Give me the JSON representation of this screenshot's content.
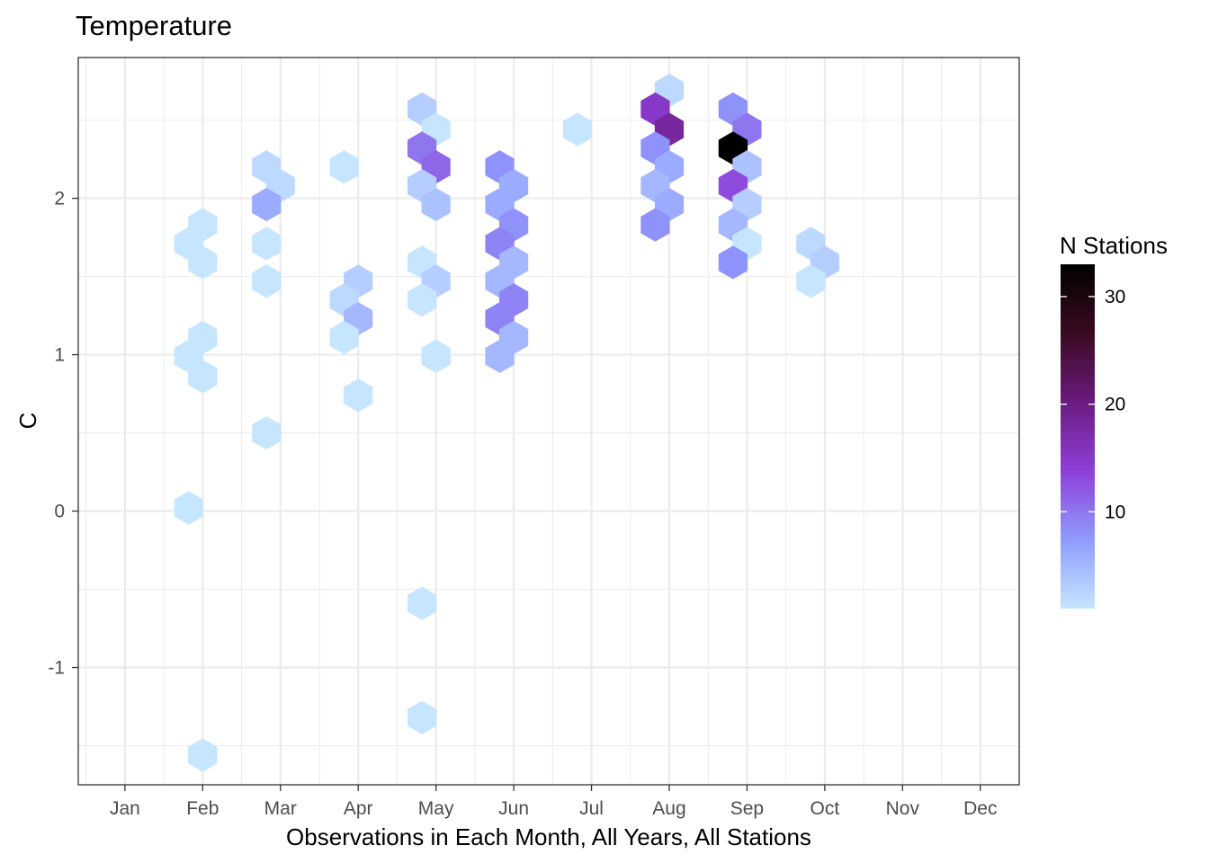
{
  "chart_data": {
    "type": "hexbin",
    "title": "Temperature",
    "xlabel": "Observations in Each Month, All Years, All Stations",
    "ylabel": "C",
    "x_categories": [
      "Jan",
      "Feb",
      "Mar",
      "Apr",
      "May",
      "Jun",
      "Jul",
      "Aug",
      "Sep",
      "Oct",
      "Nov",
      "Dec"
    ],
    "xlim": [
      0.4,
      12.5
    ],
    "ylim": [
      -1.75,
      2.9
    ],
    "y_ticks": [
      {
        "value": -1,
        "label": "-1"
      },
      {
        "value": 0,
        "label": "0"
      },
      {
        "value": 1,
        "label": "1"
      },
      {
        "value": 2,
        "label": "2"
      }
    ],
    "grid": true,
    "legend": {
      "title": "N Stations",
      "placement": "right",
      "min": 1,
      "max": 33,
      "ticks": [
        {
          "value": 10,
          "label": "10"
        },
        {
          "value": 20,
          "label": "20"
        },
        {
          "value": 30,
          "label": "30"
        }
      ],
      "colors": [
        "#c6e5ff",
        "#8f9bff",
        "#8e3fd8",
        "#6a1b80",
        "#3a0a20",
        "#000000"
      ]
    },
    "cells": [
      {
        "x": 1.82,
        "y": 1.71,
        "count": 1
      },
      {
        "x": 2.0,
        "y": 1.83,
        "count": 1
      },
      {
        "x": 2.0,
        "y": 1.59,
        "count": 1
      },
      {
        "x": 2.0,
        "y": 1.11,
        "count": 1
      },
      {
        "x": 1.82,
        "y": 0.99,
        "count": 1
      },
      {
        "x": 2.0,
        "y": 0.86,
        "count": 1
      },
      {
        "x": 1.82,
        "y": 0.02,
        "count": 1
      },
      {
        "x": 2.0,
        "y": -1.56,
        "count": 1
      },
      {
        "x": 2.82,
        "y": 2.2,
        "count": 2
      },
      {
        "x": 3.0,
        "y": 2.08,
        "count": 2
      },
      {
        "x": 2.82,
        "y": 1.96,
        "count": 6
      },
      {
        "x": 2.82,
        "y": 1.71,
        "count": 1
      },
      {
        "x": 2.82,
        "y": 1.47,
        "count": 1
      },
      {
        "x": 2.82,
        "y": 0.5,
        "count": 1
      },
      {
        "x": 3.82,
        "y": 2.2,
        "count": 1
      },
      {
        "x": 4.0,
        "y": 1.47,
        "count": 3
      },
      {
        "x": 3.82,
        "y": 1.35,
        "count": 2
      },
      {
        "x": 4.0,
        "y": 1.23,
        "count": 5
      },
      {
        "x": 3.82,
        "y": 1.11,
        "count": 1
      },
      {
        "x": 4.0,
        "y": 0.74,
        "count": 1
      },
      {
        "x": 4.82,
        "y": 2.57,
        "count": 3
      },
      {
        "x": 5.0,
        "y": 2.44,
        "count": 1
      },
      {
        "x": 4.82,
        "y": 2.32,
        "count": 10
      },
      {
        "x": 5.0,
        "y": 2.2,
        "count": 11
      },
      {
        "x": 4.82,
        "y": 2.08,
        "count": 3
      },
      {
        "x": 5.0,
        "y": 1.96,
        "count": 4
      },
      {
        "x": 4.82,
        "y": 1.59,
        "count": 1
      },
      {
        "x": 5.0,
        "y": 1.47,
        "count": 3
      },
      {
        "x": 4.82,
        "y": 1.35,
        "count": 1
      },
      {
        "x": 5.0,
        "y": 0.99,
        "count": 1
      },
      {
        "x": 4.82,
        "y": -0.59,
        "count": 1
      },
      {
        "x": 4.82,
        "y": -1.32,
        "count": 1
      },
      {
        "x": 5.82,
        "y": 2.2,
        "count": 8
      },
      {
        "x": 6.0,
        "y": 2.08,
        "count": 6
      },
      {
        "x": 5.82,
        "y": 1.96,
        "count": 6
      },
      {
        "x": 6.0,
        "y": 1.83,
        "count": 8
      },
      {
        "x": 5.82,
        "y": 1.71,
        "count": 9
      },
      {
        "x": 6.0,
        "y": 1.59,
        "count": 5
      },
      {
        "x": 5.82,
        "y": 1.47,
        "count": 5
      },
      {
        "x": 6.0,
        "y": 1.35,
        "count": 9
      },
      {
        "x": 5.82,
        "y": 1.23,
        "count": 9
      },
      {
        "x": 6.0,
        "y": 1.11,
        "count": 5
      },
      {
        "x": 5.82,
        "y": 0.99,
        "count": 5
      },
      {
        "x": 6.82,
        "y": 2.44,
        "count": 1
      },
      {
        "x": 8.0,
        "y": 2.69,
        "count": 2
      },
      {
        "x": 7.82,
        "y": 2.57,
        "count": 15
      },
      {
        "x": 8.0,
        "y": 2.44,
        "count": 18
      },
      {
        "x": 7.82,
        "y": 2.32,
        "count": 8
      },
      {
        "x": 8.0,
        "y": 2.2,
        "count": 6
      },
      {
        "x": 7.82,
        "y": 2.08,
        "count": 5
      },
      {
        "x": 8.0,
        "y": 1.96,
        "count": 6
      },
      {
        "x": 7.82,
        "y": 1.83,
        "count": 8
      },
      {
        "x": 8.82,
        "y": 2.57,
        "count": 8
      },
      {
        "x": 9.0,
        "y": 2.44,
        "count": 10
      },
      {
        "x": 8.82,
        "y": 2.32,
        "count": 33
      },
      {
        "x": 9.0,
        "y": 2.2,
        "count": 4
      },
      {
        "x": 8.82,
        "y": 2.08,
        "count": 13
      },
      {
        "x": 9.0,
        "y": 1.96,
        "count": 3
      },
      {
        "x": 8.82,
        "y": 1.83,
        "count": 5
      },
      {
        "x": 9.0,
        "y": 1.71,
        "count": 1
      },
      {
        "x": 8.82,
        "y": 1.59,
        "count": 8
      },
      {
        "x": 9.82,
        "y": 1.71,
        "count": 2
      },
      {
        "x": 10.0,
        "y": 1.59,
        "count": 3
      },
      {
        "x": 9.82,
        "y": 1.47,
        "count": 1
      }
    ]
  }
}
